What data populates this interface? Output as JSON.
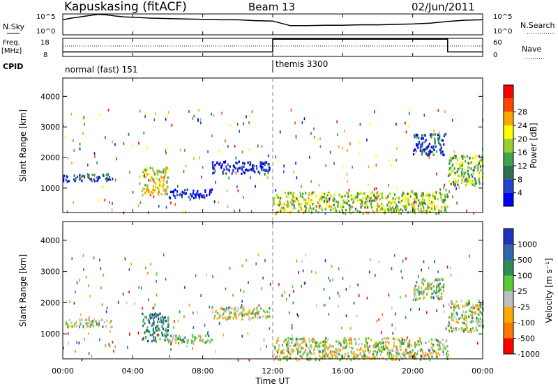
{
  "header": {
    "station": "Kapuskasing (fitACF)",
    "beam": "Beam 13",
    "date": "02/Jun/2011"
  },
  "chart_data": [
    {
      "type": "line",
      "panel": "noise",
      "left_label": "N.Sky",
      "right_label": "N.Search",
      "left_ticks": [
        "10^5",
        "10^0"
      ],
      "right_ticks": [
        "10^5",
        "10^0"
      ],
      "yscale": "log",
      "ylim_exponent": [
        0,
        5
      ],
      "x": [
        0,
        0.5,
        1,
        1.5,
        2,
        2.5,
        3,
        3.5,
        4,
        5,
        6,
        7,
        8,
        9,
        10,
        11,
        12,
        13,
        14,
        15,
        16,
        17,
        18,
        19,
        20,
        21,
        22,
        23,
        24
      ],
      "series": [
        {
          "values": [
            3.6,
            4.0,
            4.3,
            4.6,
            4.9,
            4.8,
            4.5,
            4.3,
            4.2,
            4.0,
            3.9,
            3.8,
            3.7,
            3.6,
            3.6,
            3.4,
            3.3,
            2.2,
            2.2,
            2.3,
            2.3,
            2.4,
            2.4,
            2.5,
            2.6,
            2.8,
            3.2,
            3.5,
            3.6
          ]
        }
      ]
    },
    {
      "type": "line",
      "panel": "frequency",
      "left_label": "Freq.",
      "left_unit": "[MHz]",
      "right_label": "Nave",
      "left_ticks": [
        "18",
        "8"
      ],
      "right_ticks": [
        "60",
        "0"
      ],
      "ylim_left": [
        8,
        18
      ],
      "ylim_right": [
        0,
        60
      ],
      "x": [
        0,
        12,
        12,
        22,
        22,
        24
      ],
      "series": [
        {
          "values": [
            10.5,
            10.5,
            17.5,
            17.5,
            10.5,
            10.5
          ]
        }
      ]
    },
    {
      "type": "table",
      "panel": "cpid",
      "label": "CPID",
      "segments": [
        {
          "start": 0,
          "end": 12,
          "text": "normal (fast) 151"
        },
        {
          "start": 12,
          "end": 24,
          "text": "themis 3300"
        }
      ]
    },
    {
      "type": "heatmap",
      "panel": "power",
      "ylabel": "Slant Range [km]",
      "ylim": [
        200,
        4600
      ],
      "yticks": [
        "1000",
        "2000",
        "3000",
        "4000"
      ],
      "colorbar_label": "Power [dB]",
      "colorbar_ticks": [
        "4",
        "8",
        "12",
        "16",
        "20",
        "24",
        "28"
      ],
      "colors": [
        "#0000ff",
        "#2244cc",
        "#2f6f4f",
        "#3aa54a",
        "#9acd32",
        "#ffff00",
        "#ffa500",
        "#ff4500",
        "#ff0000"
      ],
      "regions": [
        {
          "t0": 0.0,
          "t1": 2.8,
          "r0": 1250,
          "r1": 1500,
          "level": 0.2
        },
        {
          "t0": 4.5,
          "t1": 6.0,
          "r0": 800,
          "r1": 1700,
          "level": 0.6
        },
        {
          "t0": 6.0,
          "t1": 8.5,
          "r0": 700,
          "r1": 1000,
          "level": 0.1
        },
        {
          "t0": 8.5,
          "t1": 11.8,
          "r0": 1500,
          "r1": 1900,
          "level": 0.1
        },
        {
          "t0": 12.0,
          "t1": 22.0,
          "r0": 200,
          "r1": 900,
          "level": 0.5
        },
        {
          "t0": 20.0,
          "t1": 21.8,
          "r0": 2100,
          "r1": 2800,
          "level": 0.15
        },
        {
          "t0": 22.0,
          "t1": 24.0,
          "r0": 1100,
          "r1": 2100,
          "level": 0.45
        }
      ]
    },
    {
      "type": "heatmap",
      "panel": "velocity",
      "ylabel": "Slant Range [km]",
      "ylim": [
        200,
        4600
      ],
      "yticks": [
        "1000",
        "2000",
        "3000",
        "4000"
      ],
      "colorbar_label": "Velocity [m s⁻¹]",
      "colorbar_ticks": [
        "1000",
        "500",
        "100",
        "25",
        "-25",
        "-100",
        "-500",
        "-1000"
      ],
      "colors": [
        "#2233bb",
        "#3366aa",
        "#2e8b57",
        "#55cc33",
        "#c0c0c0",
        "#ffaa00",
        "#ff7700",
        "#ff0000"
      ],
      "regions": [
        {
          "t0": 0.0,
          "t1": 2.8,
          "r0": 1250,
          "r1": 1500,
          "level": 0.5
        },
        {
          "t0": 4.5,
          "t1": 6.0,
          "r0": 800,
          "r1": 1700,
          "level": 0.25
        },
        {
          "t0": 6.0,
          "t1": 8.5,
          "r0": 700,
          "r1": 1000,
          "level": 0.45
        },
        {
          "t0": 8.5,
          "t1": 11.8,
          "r0": 1500,
          "r1": 1900,
          "level": 0.55
        },
        {
          "t0": 12.0,
          "t1": 22.0,
          "r0": 200,
          "r1": 900,
          "level": 0.55
        },
        {
          "t0": 20.0,
          "t1": 21.8,
          "r0": 2100,
          "r1": 2800,
          "level": 0.5
        },
        {
          "t0": 22.0,
          "t1": 24.0,
          "r0": 1100,
          "r1": 2100,
          "level": 0.5
        }
      ]
    }
  ],
  "time_axis": {
    "xlim": [
      0,
      24
    ],
    "tick_hours": [
      0,
      4,
      8,
      12,
      16,
      20,
      24
    ],
    "tick_labels": [
      "00:00",
      "04:00",
      "08:00",
      "12:00",
      "16:00",
      "20:00",
      "00:00"
    ],
    "xlabel": "Time UT"
  }
}
